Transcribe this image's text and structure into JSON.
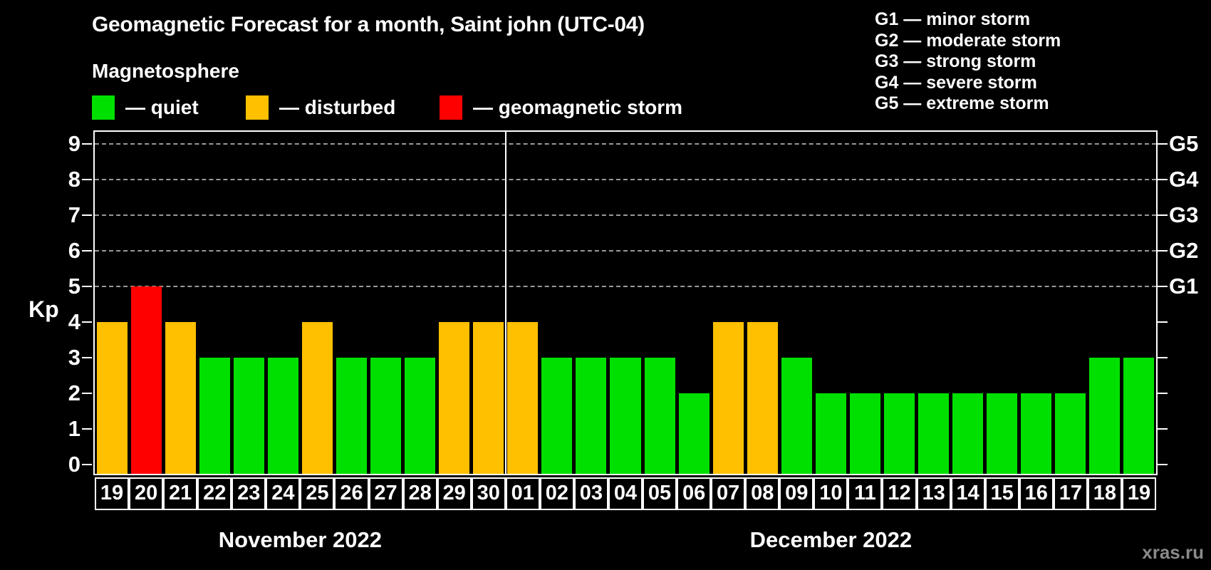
{
  "title": "Geomagnetic Forecast for a month, Saint john (UTC-04)",
  "subtitle": "Magnetosphere",
  "legend": {
    "items": [
      {
        "name": "quiet",
        "label": "— quiet",
        "color": "#00e000"
      },
      {
        "name": "disturbed",
        "label": "— disturbed",
        "color": "#ffc000"
      },
      {
        "name": "storm",
        "label": "— geomagnetic storm",
        "color": "#ff0000"
      }
    ]
  },
  "g_legend": [
    "G1 — minor storm",
    "G2 — moderate storm",
    "G3 — strong storm",
    "G4 — severe storm",
    "G5 — extreme storm"
  ],
  "watermark": "xras.ru",
  "colors": {
    "background": "#000000",
    "text": "#ffffff",
    "grid": "#999999",
    "axis": "#ffffff",
    "quiet": "#00e000",
    "disturbed": "#ffc000",
    "storm": "#ff0000",
    "watermark": "#8a8a8a"
  },
  "chart_data": {
    "type": "bar",
    "title": "Geomagnetic Forecast for a month, Saint john (UTC-04)",
    "ylabel": "Kp",
    "xlabel": "",
    "ylim": [
      0,
      9.6
    ],
    "yticks": [
      0,
      1,
      2,
      3,
      4,
      5,
      6,
      7,
      8,
      9
    ],
    "grid_levels": [
      5,
      6,
      7,
      8,
      9
    ],
    "grid_style": "dashed",
    "legend_position": "top-left",
    "right_labels": [
      {
        "level": 5,
        "label": "G1"
      },
      {
        "level": 6,
        "label": "G2"
      },
      {
        "level": 7,
        "label": "G3"
      },
      {
        "level": 8,
        "label": "G4"
      },
      {
        "level": 9,
        "label": "G5"
      }
    ],
    "months": [
      {
        "label": "November 2022",
        "points": [
          {
            "day": "19",
            "kp": 4,
            "status": "disturbed"
          },
          {
            "day": "20",
            "kp": 5,
            "status": "storm"
          },
          {
            "day": "21",
            "kp": 4,
            "status": "disturbed"
          },
          {
            "day": "22",
            "kp": 3,
            "status": "quiet"
          },
          {
            "day": "23",
            "kp": 3,
            "status": "quiet"
          },
          {
            "day": "24",
            "kp": 3,
            "status": "quiet"
          },
          {
            "day": "25",
            "kp": 4,
            "status": "disturbed"
          },
          {
            "day": "26",
            "kp": 3,
            "status": "quiet"
          },
          {
            "day": "27",
            "kp": 3,
            "status": "quiet"
          },
          {
            "day": "28",
            "kp": 3,
            "status": "quiet"
          },
          {
            "day": "29",
            "kp": 4,
            "status": "disturbed"
          },
          {
            "day": "30",
            "kp": 4,
            "status": "disturbed"
          }
        ]
      },
      {
        "label": "December 2022",
        "points": [
          {
            "day": "01",
            "kp": 4,
            "status": "disturbed"
          },
          {
            "day": "02",
            "kp": 3,
            "status": "quiet"
          },
          {
            "day": "03",
            "kp": 3,
            "status": "quiet"
          },
          {
            "day": "04",
            "kp": 3,
            "status": "quiet"
          },
          {
            "day": "05",
            "kp": 3,
            "status": "quiet"
          },
          {
            "day": "06",
            "kp": 2,
            "status": "quiet"
          },
          {
            "day": "07",
            "kp": 4,
            "status": "disturbed"
          },
          {
            "day": "08",
            "kp": 4,
            "status": "disturbed"
          },
          {
            "day": "09",
            "kp": 3,
            "status": "quiet"
          },
          {
            "day": "10",
            "kp": 2,
            "status": "quiet"
          },
          {
            "day": "11",
            "kp": 2,
            "status": "quiet"
          },
          {
            "day": "12",
            "kp": 2,
            "status": "quiet"
          },
          {
            "day": "13",
            "kp": 2,
            "status": "quiet"
          },
          {
            "day": "14",
            "kp": 2,
            "status": "quiet"
          },
          {
            "day": "15",
            "kp": 2,
            "status": "quiet"
          },
          {
            "day": "16",
            "kp": 2,
            "status": "quiet"
          },
          {
            "day": "17",
            "kp": 2,
            "status": "quiet"
          },
          {
            "day": "18",
            "kp": 3,
            "status": "quiet"
          },
          {
            "day": "19",
            "kp": 3,
            "status": "quiet"
          }
        ]
      }
    ]
  }
}
